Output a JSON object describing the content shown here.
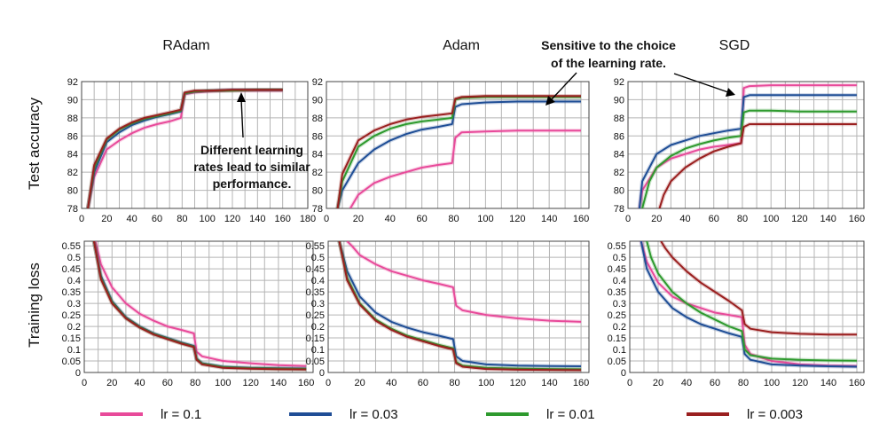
{
  "figure": {
    "column_titles": [
      "RAdam",
      "Adam",
      "SGD"
    ],
    "row_labels": [
      "Test accuracy",
      "Training loss"
    ],
    "legend": [
      {
        "label": "lr = 0.1",
        "color": "#e84a9a"
      },
      {
        "label": "lr = 0.03",
        "color": "#1f4e96"
      },
      {
        "label": "lr = 0.01",
        "color": "#2e9a2e"
      },
      {
        "label": "lr = 0.003",
        "color": "#9a1f1f"
      }
    ],
    "annotations": {
      "radam": [
        "Different learning",
        "rates lead to similar",
        "performance."
      ],
      "sensitive": [
        "Sensitive to the choice",
        "of the learning rate."
      ]
    }
  },
  "chart_data": [
    {
      "type": "line",
      "panel": "radam-accuracy",
      "title": "RAdam",
      "ylabel": "Test accuracy",
      "xlim": [
        0,
        180
      ],
      "xticks": [
        0,
        20,
        40,
        60,
        80,
        100,
        120,
        140,
        160,
        180
      ],
      "ylim": [
        78,
        92
      ],
      "yticks": [
        78,
        80,
        82,
        84,
        86,
        88,
        90,
        92
      ],
      "series": [
        {
          "name": "lr = 0.1",
          "x": [
            5,
            10,
            20,
            30,
            40,
            50,
            60,
            70,
            79,
            82,
            90,
            100,
            120,
            140,
            160
          ],
          "y": [
            78,
            81.5,
            84.5,
            85.5,
            86.3,
            86.9,
            87.3,
            87.6,
            88,
            90.6,
            90.8,
            90.9,
            91,
            91,
            91
          ]
        },
        {
          "name": "lr = 0.03",
          "x": [
            5,
            10,
            20,
            30,
            40,
            50,
            60,
            70,
            79,
            82,
            90,
            100,
            120,
            140,
            160
          ],
          "y": [
            78,
            82,
            85.3,
            86.4,
            87.2,
            87.7,
            88.1,
            88.4,
            88.7,
            90.7,
            90.9,
            91,
            91.1,
            91.1,
            91.1
          ]
        },
        {
          "name": "lr = 0.01",
          "x": [
            5,
            10,
            20,
            30,
            40,
            50,
            60,
            70,
            79,
            82,
            90,
            100,
            120,
            140,
            160
          ],
          "y": [
            78,
            82.5,
            85.6,
            86.7,
            87.4,
            87.9,
            88.2,
            88.5,
            88.8,
            90.7,
            90.9,
            91,
            91,
            91.1,
            91.1
          ]
        },
        {
          "name": "lr = 0.003",
          "x": [
            5,
            10,
            20,
            30,
            40,
            50,
            60,
            70,
            79,
            82,
            90,
            100,
            120,
            140,
            160
          ],
          "y": [
            78,
            82.8,
            85.7,
            86.8,
            87.5,
            88,
            88.3,
            88.6,
            88.9,
            90.8,
            91,
            91,
            91.1,
            91.1,
            91.1
          ]
        }
      ]
    },
    {
      "type": "line",
      "panel": "adam-accuracy",
      "title": "Adam",
      "ylabel": "",
      "xlim": [
        0,
        165
      ],
      "xticks": [
        0,
        20,
        40,
        60,
        80,
        100,
        120,
        140,
        160
      ],
      "ylim": [
        78,
        92
      ],
      "yticks": [
        78,
        80,
        82,
        84,
        86,
        88,
        90,
        92
      ],
      "series": [
        {
          "name": "lr = 0.1",
          "x": [
            15,
            20,
            30,
            40,
            50,
            60,
            70,
            79,
            81,
            85,
            100,
            120,
            140,
            160
          ],
          "y": [
            78,
            79.5,
            80.8,
            81.5,
            82,
            82.5,
            82.8,
            83,
            85.8,
            86.4,
            86.5,
            86.6,
            86.6,
            86.6
          ]
        },
        {
          "name": "lr = 0.03",
          "x": [
            7,
            10,
            20,
            30,
            40,
            50,
            60,
            70,
            79,
            81,
            85,
            100,
            120,
            140,
            160
          ],
          "y": [
            78,
            80,
            83,
            84.5,
            85.5,
            86.2,
            86.7,
            87,
            87.3,
            89.2,
            89.5,
            89.7,
            89.8,
            89.8,
            89.8
          ]
        },
        {
          "name": "lr = 0.01",
          "x": [
            7,
            10,
            20,
            30,
            40,
            50,
            60,
            70,
            79,
            81,
            85,
            100,
            120,
            140,
            160
          ],
          "y": [
            78,
            81,
            84.8,
            86,
            86.8,
            87.3,
            87.6,
            87.8,
            88,
            90,
            90.2,
            90.3,
            90.3,
            90.3,
            90.3
          ]
        },
        {
          "name": "lr = 0.003",
          "x": [
            7,
            10,
            20,
            30,
            40,
            50,
            60,
            70,
            79,
            81,
            85,
            100,
            120,
            140,
            160
          ],
          "y": [
            78,
            81.8,
            85.5,
            86.6,
            87.3,
            87.8,
            88.1,
            88.3,
            88.5,
            90.1,
            90.3,
            90.4,
            90.4,
            90.4,
            90.4
          ]
        }
      ]
    },
    {
      "type": "line",
      "panel": "sgd-accuracy",
      "title": "SGD",
      "ylabel": "",
      "xlim": [
        0,
        165
      ],
      "xticks": [
        0,
        20,
        40,
        60,
        80,
        100,
        120,
        140,
        160
      ],
      "ylim": [
        78,
        92
      ],
      "yticks": [
        78,
        80,
        82,
        84,
        86,
        88,
        90,
        92
      ],
      "series": [
        {
          "name": "lr = 0.1",
          "x": [
            8,
            10,
            20,
            30,
            40,
            50,
            60,
            70,
            79,
            81,
            85,
            100,
            120,
            140,
            160
          ],
          "y": [
            78,
            80,
            82.5,
            83.5,
            84,
            84.5,
            84.8,
            85,
            85.2,
            91.3,
            91.5,
            91.6,
            91.6,
            91.6,
            91.6
          ]
        },
        {
          "name": "lr = 0.03",
          "x": [
            8,
            10,
            20,
            30,
            40,
            50,
            60,
            70,
            79,
            81,
            85,
            100,
            120,
            140,
            160
          ],
          "y": [
            78,
            81,
            84,
            85,
            85.5,
            86,
            86.3,
            86.6,
            86.8,
            90.3,
            90.5,
            90.5,
            90.5,
            90.5,
            90.5
          ]
        },
        {
          "name": "lr = 0.01",
          "x": [
            10,
            15,
            20,
            30,
            40,
            50,
            60,
            70,
            79,
            81,
            85,
            100,
            120,
            140,
            160
          ],
          "y": [
            78,
            81,
            82.5,
            83.8,
            84.6,
            85.1,
            85.5,
            85.8,
            86,
            88.6,
            88.8,
            88.8,
            88.7,
            88.7,
            88.7
          ]
        },
        {
          "name": "lr = 0.003",
          "x": [
            22,
            25,
            30,
            40,
            50,
            60,
            70,
            79,
            81,
            85,
            100,
            120,
            140,
            160
          ],
          "y": [
            78,
            79.5,
            81,
            82.5,
            83.5,
            84.3,
            84.8,
            85.2,
            87,
            87.3,
            87.3,
            87.3,
            87.3,
            87.3
          ]
        }
      ]
    },
    {
      "type": "line",
      "panel": "radam-loss",
      "title": "",
      "ylabel": "Training loss",
      "xlim": [
        0,
        165
      ],
      "xticks": [
        0,
        20,
        40,
        60,
        80,
        100,
        120,
        140,
        160
      ],
      "ylim": [
        0,
        0.57
      ],
      "yticks": [
        0,
        0.05,
        0.1,
        0.15,
        0.2,
        0.25,
        0.3,
        0.35,
        0.4,
        0.45,
        0.5,
        0.55
      ],
      "series": [
        {
          "name": "lr = 0.1",
          "x": [
            8,
            12,
            20,
            30,
            40,
            50,
            60,
            70,
            79,
            81,
            85,
            100,
            120,
            140,
            160
          ],
          "y": [
            0.57,
            0.47,
            0.37,
            0.3,
            0.255,
            0.225,
            0.2,
            0.185,
            0.17,
            0.09,
            0.07,
            0.05,
            0.04,
            0.032,
            0.028
          ]
        },
        {
          "name": "lr = 0.03",
          "x": [
            7,
            12,
            20,
            30,
            40,
            50,
            60,
            70,
            79,
            81,
            85,
            100,
            120,
            140,
            160
          ],
          "y": [
            0.57,
            0.42,
            0.31,
            0.24,
            0.2,
            0.17,
            0.15,
            0.13,
            0.115,
            0.06,
            0.04,
            0.025,
            0.02,
            0.018,
            0.017
          ]
        },
        {
          "name": "lr = 0.01",
          "x": [
            7,
            12,
            20,
            30,
            40,
            50,
            60,
            70,
            79,
            81,
            85,
            100,
            120,
            140,
            160
          ],
          "y": [
            0.57,
            0.41,
            0.305,
            0.237,
            0.197,
            0.167,
            0.147,
            0.127,
            0.112,
            0.058,
            0.038,
            0.023,
            0.018,
            0.016,
            0.015
          ]
        },
        {
          "name": "lr = 0.003",
          "x": [
            7,
            12,
            20,
            30,
            40,
            50,
            60,
            70,
            79,
            81,
            85,
            100,
            120,
            140,
            160
          ],
          "y": [
            0.57,
            0.405,
            0.3,
            0.235,
            0.195,
            0.165,
            0.145,
            0.125,
            0.11,
            0.055,
            0.035,
            0.02,
            0.016,
            0.014,
            0.013
          ]
        }
      ]
    },
    {
      "type": "line",
      "panel": "adam-loss",
      "title": "",
      "ylabel": "",
      "xlim": [
        0,
        165
      ],
      "xticks": [
        0,
        20,
        40,
        60,
        80,
        100,
        120,
        140,
        160
      ],
      "ylim": [
        0,
        0.57
      ],
      "yticks": [
        0,
        0.05,
        0.1,
        0.15,
        0.2,
        0.25,
        0.3,
        0.35,
        0.4,
        0.45,
        0.5,
        0.55
      ],
      "series": [
        {
          "name": "lr = 0.1",
          "x": [
            12,
            15,
            20,
            30,
            40,
            50,
            60,
            70,
            79,
            81,
            85,
            100,
            120,
            140,
            160
          ],
          "y": [
            0.57,
            0.55,
            0.51,
            0.47,
            0.44,
            0.42,
            0.4,
            0.385,
            0.37,
            0.29,
            0.27,
            0.25,
            0.235,
            0.225,
            0.22
          ]
        },
        {
          "name": "lr = 0.03",
          "x": [
            7,
            12,
            20,
            30,
            40,
            50,
            60,
            70,
            79,
            81,
            85,
            100,
            120,
            140,
            160
          ],
          "y": [
            0.57,
            0.44,
            0.33,
            0.26,
            0.22,
            0.195,
            0.175,
            0.16,
            0.145,
            0.07,
            0.05,
            0.035,
            0.03,
            0.028,
            0.027
          ]
        },
        {
          "name": "lr = 0.01",
          "x": [
            7,
            12,
            20,
            30,
            40,
            50,
            60,
            70,
            79,
            81,
            85,
            100,
            120,
            140,
            160
          ],
          "y": [
            0.57,
            0.41,
            0.3,
            0.23,
            0.19,
            0.16,
            0.14,
            0.12,
            0.105,
            0.045,
            0.03,
            0.02,
            0.017,
            0.015,
            0.014
          ]
        },
        {
          "name": "lr = 0.003",
          "x": [
            7,
            12,
            20,
            30,
            40,
            50,
            60,
            70,
            79,
            81,
            85,
            100,
            120,
            140,
            160
          ],
          "y": [
            0.57,
            0.4,
            0.295,
            0.225,
            0.185,
            0.155,
            0.135,
            0.115,
            0.1,
            0.04,
            0.025,
            0.015,
            0.012,
            0.011,
            0.01
          ]
        }
      ]
    },
    {
      "type": "line",
      "panel": "sgd-loss",
      "title": "",
      "ylabel": "",
      "xlim": [
        0,
        165
      ],
      "xticks": [
        0,
        20,
        40,
        60,
        80,
        100,
        120,
        140,
        160
      ],
      "ylim": [
        0,
        0.57
      ],
      "yticks": [
        0,
        0.05,
        0.1,
        0.15,
        0.2,
        0.25,
        0.3,
        0.35,
        0.4,
        0.45,
        0.5,
        0.55
      ],
      "series": [
        {
          "name": "lr = 0.1",
          "x": [
            8,
            12,
            20,
            30,
            40,
            50,
            60,
            70,
            79,
            81,
            85,
            100,
            120,
            140,
            160
          ],
          "y": [
            0.57,
            0.48,
            0.39,
            0.33,
            0.3,
            0.28,
            0.26,
            0.25,
            0.24,
            0.12,
            0.08,
            0.05,
            0.035,
            0.03,
            0.028
          ]
        },
        {
          "name": "lr = 0.03",
          "x": [
            8,
            12,
            20,
            30,
            40,
            50,
            60,
            70,
            79,
            81,
            85,
            100,
            120,
            140,
            160
          ],
          "y": [
            0.57,
            0.45,
            0.35,
            0.28,
            0.24,
            0.21,
            0.19,
            0.17,
            0.155,
            0.08,
            0.055,
            0.035,
            0.03,
            0.027,
            0.025
          ]
        },
        {
          "name": "lr = 0.01",
          "x": [
            12,
            15,
            20,
            30,
            40,
            50,
            60,
            70,
            79,
            81,
            85,
            100,
            120,
            140,
            160
          ],
          "y": [
            0.57,
            0.5,
            0.43,
            0.35,
            0.3,
            0.26,
            0.23,
            0.2,
            0.18,
            0.1,
            0.075,
            0.06,
            0.055,
            0.052,
            0.051
          ]
        },
        {
          "name": "lr = 0.003",
          "x": [
            22,
            25,
            30,
            40,
            50,
            60,
            70,
            79,
            81,
            85,
            100,
            120,
            140,
            160
          ],
          "y": [
            0.57,
            0.54,
            0.5,
            0.44,
            0.39,
            0.35,
            0.31,
            0.27,
            0.21,
            0.19,
            0.175,
            0.168,
            0.165,
            0.165
          ]
        }
      ]
    }
  ]
}
